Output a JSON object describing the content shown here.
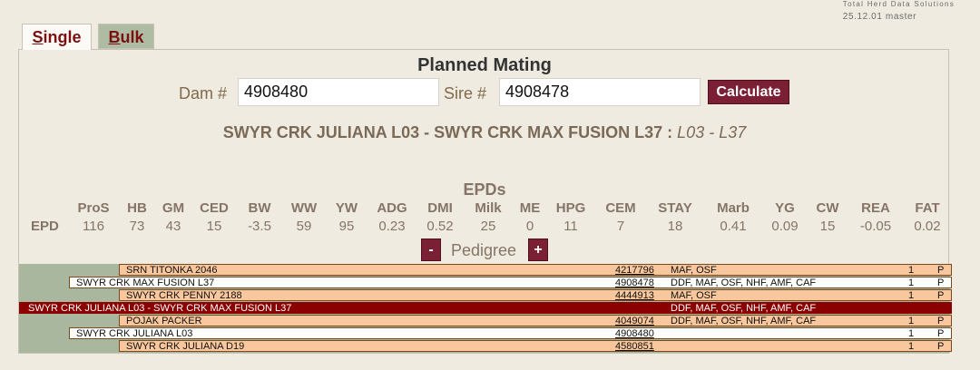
{
  "brand": {
    "company": "Total Herd Data Solutions",
    "version": "25.12.01 master"
  },
  "tabs": {
    "single_first": "S",
    "single_rest": "ingle",
    "bulk_first": "B",
    "bulk_rest": "ulk"
  },
  "form": {
    "title": "Planned Mating",
    "dam_label": "Dam #",
    "dam_value": "4908480",
    "sire_label": "Sire #",
    "sire_value": "4908478",
    "calculate_label": "Calculate"
  },
  "mating": {
    "names": "SWYR CRK JULIANA L03 - SWYR CRK MAX FUSION L37",
    "sep": ":",
    "codes": "L03 - L37"
  },
  "epds": {
    "title": "EPDs",
    "row_label": "EPD",
    "columns": [
      {
        "name": "ProS",
        "value": "116"
      },
      {
        "name": "HB",
        "value": "73"
      },
      {
        "name": "GM",
        "value": "43"
      },
      {
        "name": "CED",
        "value": "15"
      },
      {
        "name": "BW",
        "value": "-3.5"
      },
      {
        "name": "WW",
        "value": "59"
      },
      {
        "name": "YW",
        "value": "95"
      },
      {
        "name": "ADG",
        "value": "0.23"
      },
      {
        "name": "DMI",
        "value": "0.52"
      },
      {
        "name": "Milk",
        "value": "25"
      },
      {
        "name": "ME",
        "value": "0"
      },
      {
        "name": "HPG",
        "value": "11"
      },
      {
        "name": "CEM",
        "value": "7"
      },
      {
        "name": "STAY",
        "value": "18"
      },
      {
        "name": "Marb",
        "value": "0.41"
      },
      {
        "name": "YG",
        "value": "0.09"
      },
      {
        "name": "CW",
        "value": "15"
      },
      {
        "name": "REA",
        "value": "-0.05"
      },
      {
        "name": "FAT",
        "value": "0.02"
      }
    ]
  },
  "pedigree": {
    "label": "Pedigree",
    "minus": "-",
    "plus": "+",
    "rows": [
      {
        "name": "SRN TITONKA 2046",
        "number": "4217796",
        "tags": "MAF, OSF",
        "count": "1",
        "flag": "P"
      },
      {
        "name": "SWYR CRK MAX FUSION L37",
        "number": "4908478",
        "tags": "DDF, MAF, OSF, NHF, AMF, CAF",
        "count": "1",
        "flag": "P"
      },
      {
        "name": "SWYR CRK PENNY 2188",
        "number": "4444913",
        "tags": "MAF, OSF",
        "count": "1",
        "flag": "P"
      },
      {
        "name": "SWYR CRK JULIANA L03 - SWYR CRK MAX FUSION L37",
        "number": "",
        "tags": "DDF, MAF, OSF, NHF, AMF, CAF",
        "count": "",
        "flag": ""
      },
      {
        "name": "POJAK PACKER",
        "number": "4049074",
        "tags": "DDF, MAF, OSF, NHF, AMF, CAF",
        "count": "1",
        "flag": "P"
      },
      {
        "name": "SWYR CRK JULIANA L03",
        "number": "4908480",
        "tags": "",
        "count": "1",
        "flag": "P"
      },
      {
        "name": "SWYR CRK JULIANA D19",
        "number": "4580851",
        "tags": "",
        "count": "1",
        "flag": "P"
      }
    ]
  },
  "colors": {
    "accent": "#7b1f35",
    "tab_text": "#7b1010",
    "bulk_tab": "#aebca4",
    "offspring_row": "#8b0000",
    "ancestor_row": "#f8c79d"
  }
}
